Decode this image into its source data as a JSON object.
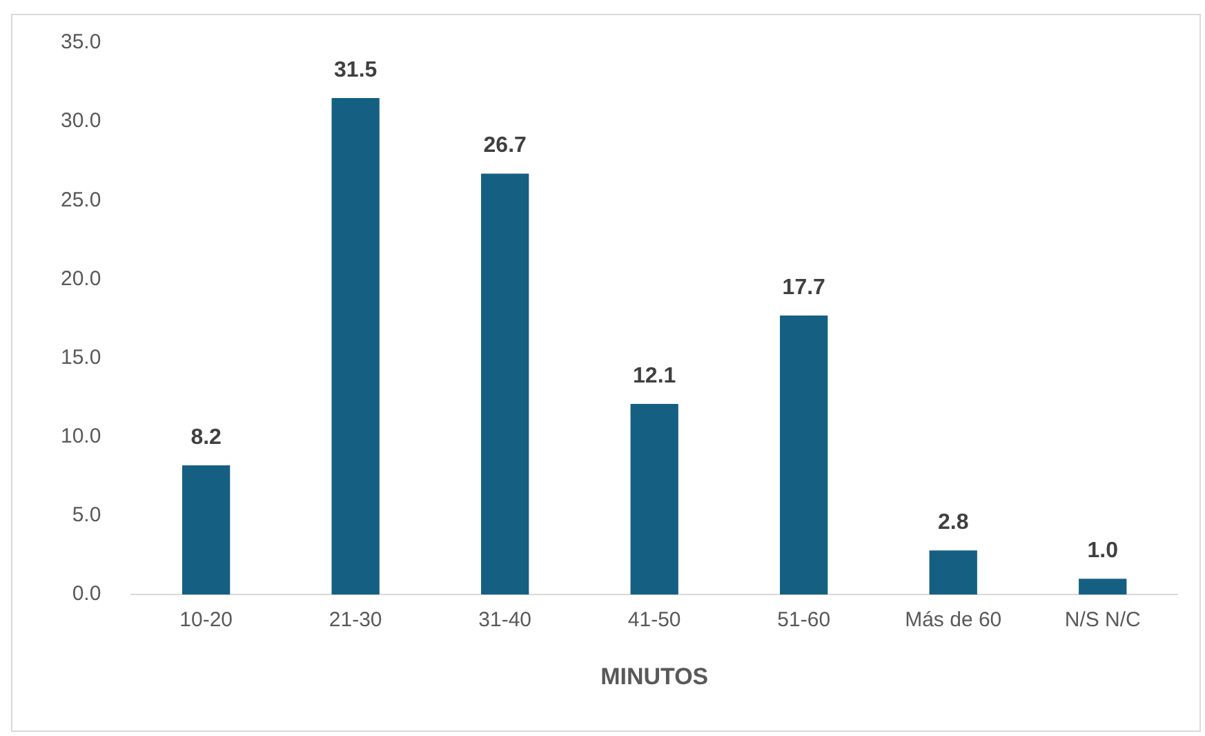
{
  "chart_data": {
    "type": "bar",
    "xlabel": "MINUTOS",
    "categories": [
      "10-20",
      "21-30",
      "31-40",
      "41-50",
      "51-60",
      "Más de 60",
      "N/S N/C"
    ],
    "values": [
      8.2,
      31.5,
      26.7,
      12.1,
      17.7,
      2.8,
      1.0
    ],
    "value_labels": [
      "8.2",
      "31.5",
      "26.7",
      "12.1",
      "17.7",
      "2.8",
      "1.0"
    ],
    "color": "#155f82",
    "ylim": [
      0,
      35
    ],
    "yticks": [
      {
        "value": 0,
        "label": "0.0"
      },
      {
        "value": 5,
        "label": "5.0"
      },
      {
        "value": 10,
        "label": "10.0"
      },
      {
        "value": 15,
        "label": "15.0"
      },
      {
        "value": 20,
        "label": "20.0"
      },
      {
        "value": 25,
        "label": "25.0"
      },
      {
        "value": 30,
        "label": "30.0"
      },
      {
        "value": 35,
        "label": "35.0"
      }
    ],
    "grid": false,
    "legend": false
  }
}
